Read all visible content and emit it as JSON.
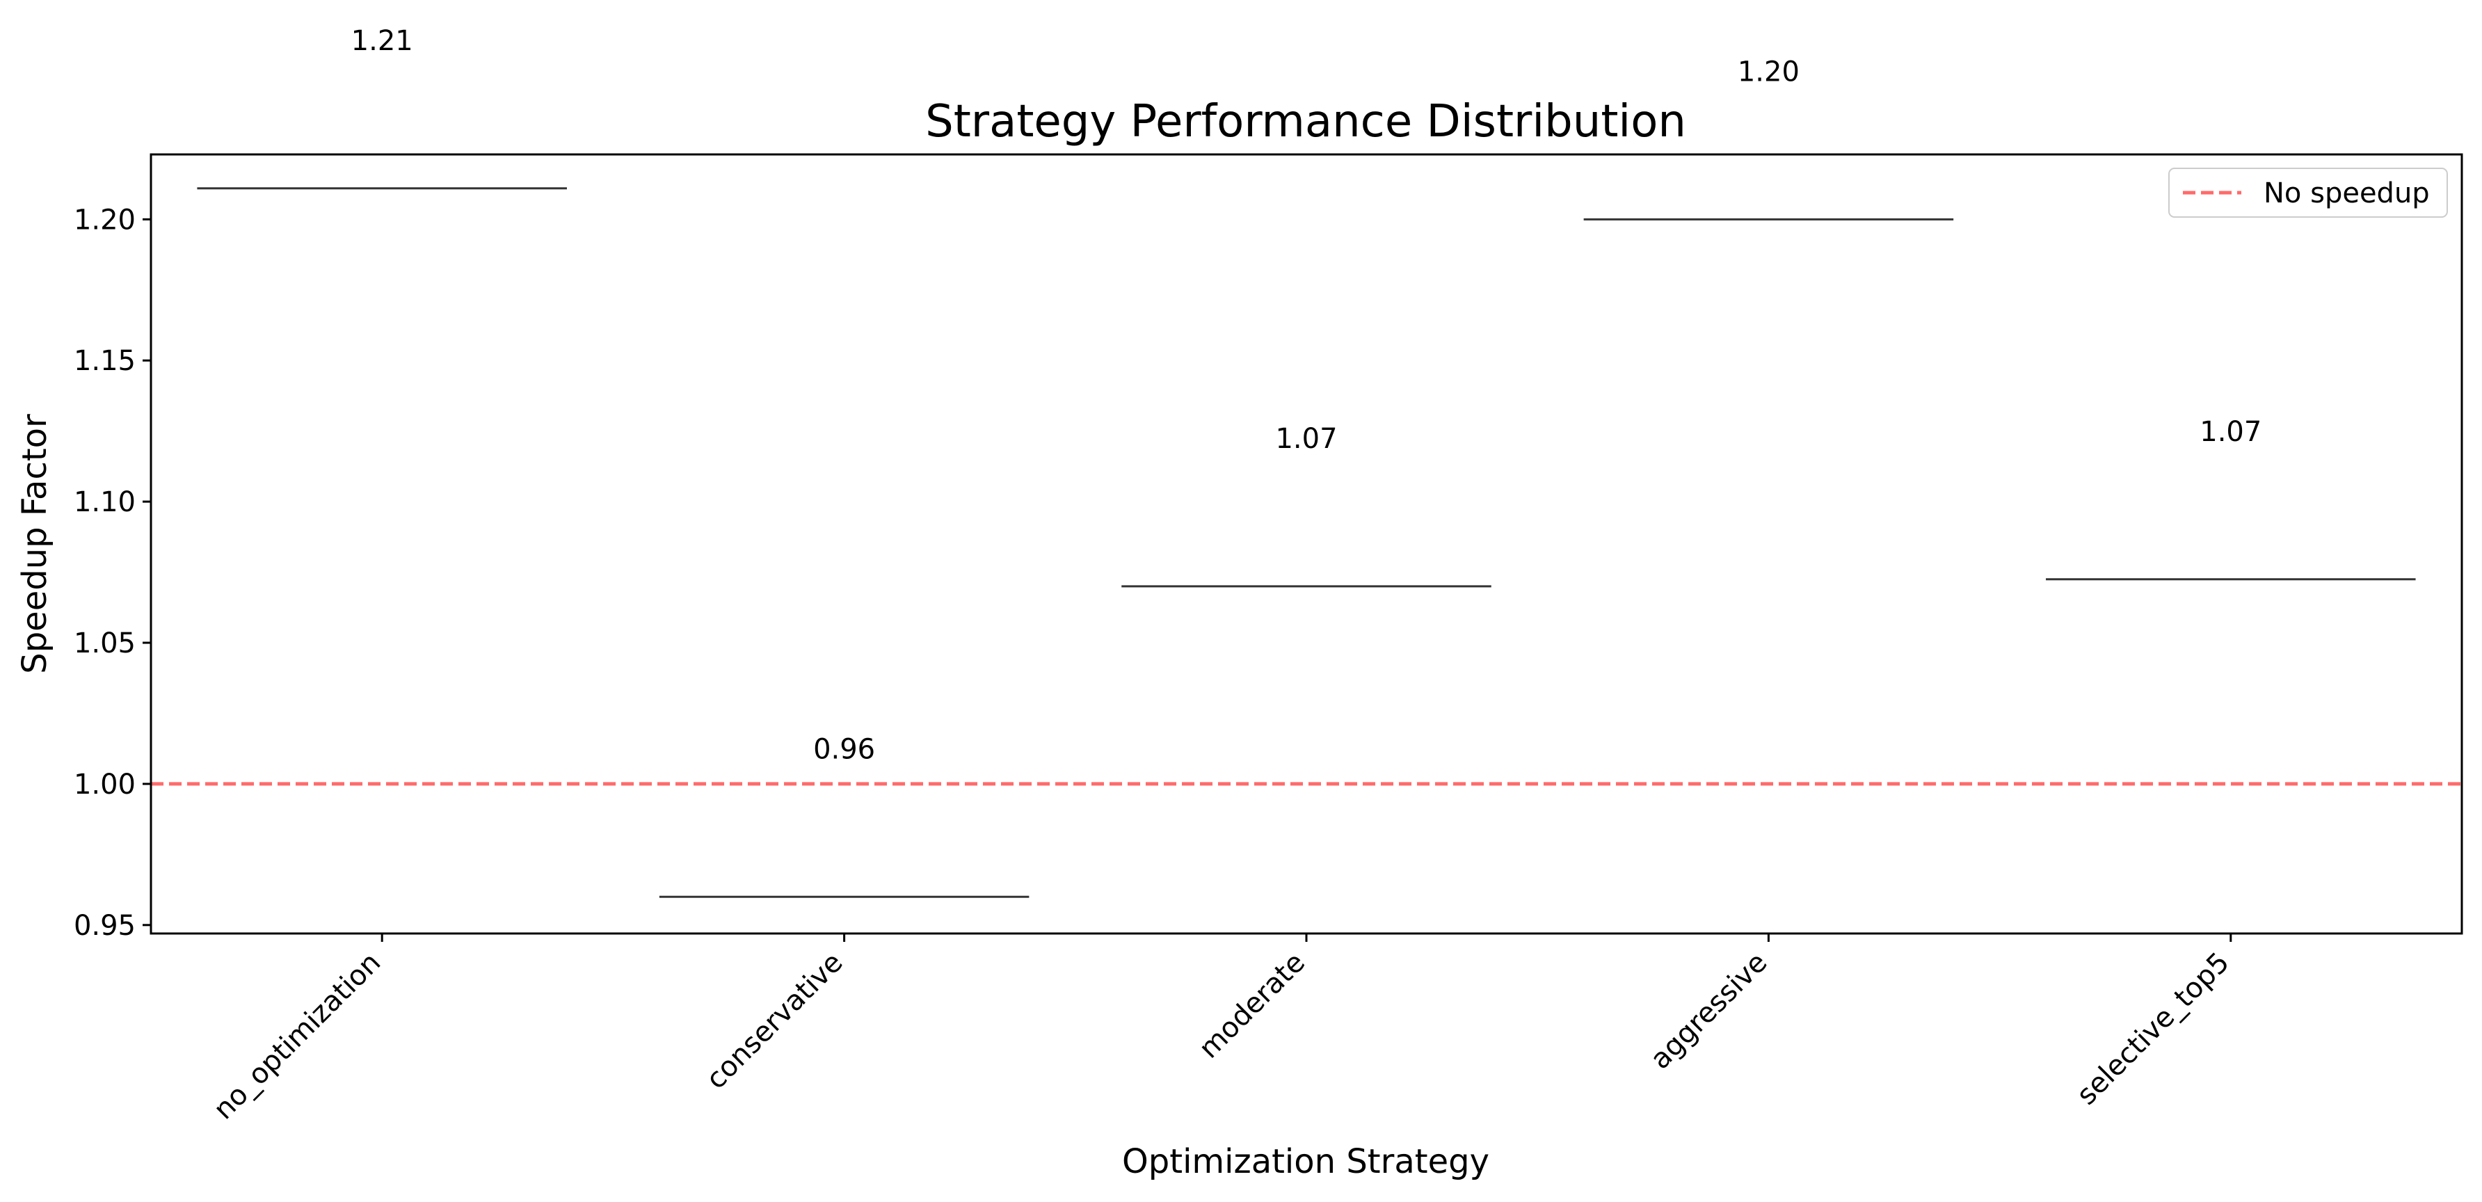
{
  "chart_data": {
    "type": "box",
    "title": "Strategy Performance Distribution",
    "xlabel": "Optimization Strategy",
    "ylabel": "Speedup Factor",
    "categories": [
      "no_optimization",
      "conservative",
      "moderate",
      "aggressive",
      "selective_top5"
    ],
    "values": [
      1.211,
      0.96,
      1.07,
      1.2,
      1.0725
    ],
    "value_labels": [
      "1.21",
      "0.96",
      "1.07",
      "1.20",
      "1.07"
    ],
    "ylim": [
      0.947,
      1.223
    ],
    "yticks": [
      0.95,
      1.0,
      1.05,
      1.1,
      1.15,
      1.2
    ],
    "ytick_labels": [
      "0.95",
      "1.00",
      "1.05",
      "1.10",
      "1.15",
      "1.20"
    ],
    "reference_line": {
      "value": 1.0,
      "label": "No speedup",
      "color": "#ff6b6b",
      "style": "dashed"
    },
    "legend": {
      "position": "top-right",
      "entries": [
        "No speedup"
      ]
    },
    "grid": false,
    "box_color": "#333333"
  }
}
